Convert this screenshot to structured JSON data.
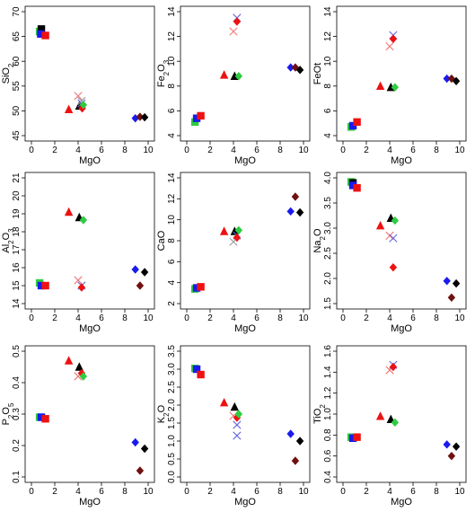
{
  "colors": {
    "black": "#000000",
    "red": "#ee1111",
    "green": "#2ecc40",
    "blue": "#1a1aee",
    "darkred": "#701010",
    "xred": "#ee7777",
    "xblue": "#6666dd",
    "xgrey": "#999999"
  },
  "chart_data": [
    {
      "type": "scatter",
      "xlabel": "MgO",
      "ylabel": "SiO2",
      "xlim": [
        0,
        10
      ],
      "ylim": [
        45,
        70
      ],
      "xticks": [
        0,
        2,
        4,
        6,
        8,
        10
      ],
      "yticks": [
        45,
        50,
        55,
        60,
        65,
        70
      ],
      "points": [
        {
          "x": 0.7,
          "y": 66.0,
          "shape": "square",
          "color": "green"
        },
        {
          "x": 0.85,
          "y": 66.5,
          "shape": "square",
          "color": "black"
        },
        {
          "x": 0.8,
          "y": 65.5,
          "shape": "square",
          "color": "blue"
        },
        {
          "x": 1.2,
          "y": 65.2,
          "shape": "square",
          "color": "red"
        },
        {
          "x": 3.2,
          "y": 50.3,
          "shape": "triangle",
          "color": "red"
        },
        {
          "x": 4.0,
          "y": 53.0,
          "shape": "x",
          "color": "xred"
        },
        {
          "x": 4.1,
          "y": 51.0,
          "shape": "triangle",
          "color": "black"
        },
        {
          "x": 4.3,
          "y": 52.0,
          "shape": "x",
          "color": "xgrey"
        },
        {
          "x": 4.3,
          "y": 51.5,
          "shape": "x",
          "color": "xblue"
        },
        {
          "x": 4.35,
          "y": 50.5,
          "shape": "diamond",
          "color": "red"
        },
        {
          "x": 4.45,
          "y": 51.2,
          "shape": "diamond",
          "color": "green"
        },
        {
          "x": 8.9,
          "y": 48.5,
          "shape": "diamond",
          "color": "blue"
        },
        {
          "x": 9.3,
          "y": 48.8,
          "shape": "diamond",
          "color": "darkred"
        },
        {
          "x": 9.7,
          "y": 48.7,
          "shape": "diamond",
          "color": "black"
        }
      ]
    },
    {
      "type": "scatter",
      "xlabel": "MgO",
      "ylabel": "Fe2O3",
      "xlim": [
        0,
        10
      ],
      "ylim": [
        4,
        14
      ],
      "xticks": [
        0,
        2,
        4,
        6,
        8,
        10
      ],
      "yticks": [
        4,
        6,
        8,
        10,
        12,
        14
      ],
      "points": [
        {
          "x": 0.7,
          "y": 5.1,
          "shape": "square",
          "color": "green"
        },
        {
          "x": 0.85,
          "y": 5.4,
          "shape": "square",
          "color": "blue"
        },
        {
          "x": 1.2,
          "y": 5.6,
          "shape": "square",
          "color": "red"
        },
        {
          "x": 3.2,
          "y": 8.9,
          "shape": "triangle",
          "color": "red"
        },
        {
          "x": 4.0,
          "y": 12.4,
          "shape": "x",
          "color": "xred"
        },
        {
          "x": 4.1,
          "y": 8.8,
          "shape": "triangle",
          "color": "black"
        },
        {
          "x": 4.3,
          "y": 13.5,
          "shape": "x",
          "color": "xblue"
        },
        {
          "x": 4.3,
          "y": 13.2,
          "shape": "diamond",
          "color": "red"
        },
        {
          "x": 4.45,
          "y": 8.8,
          "shape": "diamond",
          "color": "green"
        },
        {
          "x": 8.9,
          "y": 9.5,
          "shape": "diamond",
          "color": "blue"
        },
        {
          "x": 9.3,
          "y": 9.5,
          "shape": "diamond",
          "color": "darkred"
        },
        {
          "x": 9.7,
          "y": 9.3,
          "shape": "diamond",
          "color": "black"
        }
      ]
    },
    {
      "type": "scatter",
      "xlabel": "MgO",
      "ylabel": "FeOt",
      "xlim": [
        0,
        10
      ],
      "ylim": [
        4,
        14
      ],
      "xticks": [
        0,
        2,
        4,
        6,
        8,
        10
      ],
      "yticks": [
        4,
        6,
        8,
        10,
        12,
        14
      ],
      "points": [
        {
          "x": 0.7,
          "y": 4.7,
          "shape": "square",
          "color": "green"
        },
        {
          "x": 0.85,
          "y": 4.8,
          "shape": "square",
          "color": "blue"
        },
        {
          "x": 1.2,
          "y": 5.1,
          "shape": "square",
          "color": "red"
        },
        {
          "x": 3.2,
          "y": 8.0,
          "shape": "triangle",
          "color": "red"
        },
        {
          "x": 4.0,
          "y": 11.2,
          "shape": "x",
          "color": "xred"
        },
        {
          "x": 4.1,
          "y": 7.9,
          "shape": "triangle",
          "color": "black"
        },
        {
          "x": 4.3,
          "y": 12.1,
          "shape": "x",
          "color": "xblue"
        },
        {
          "x": 4.3,
          "y": 11.8,
          "shape": "diamond",
          "color": "red"
        },
        {
          "x": 4.45,
          "y": 7.9,
          "shape": "diamond",
          "color": "green"
        },
        {
          "x": 8.9,
          "y": 8.6,
          "shape": "diamond",
          "color": "blue"
        },
        {
          "x": 9.3,
          "y": 8.6,
          "shape": "diamond",
          "color": "darkred"
        },
        {
          "x": 9.7,
          "y": 8.4,
          "shape": "diamond",
          "color": "black"
        }
      ]
    },
    {
      "type": "scatter",
      "xlabel": "MgO",
      "ylabel": "Al2O3",
      "xlim": [
        0,
        10
      ],
      "ylim": [
        14,
        21
      ],
      "xticks": [
        0,
        2,
        4,
        6,
        8,
        10
      ],
      "yticks": [
        14,
        15,
        16,
        17,
        18,
        19,
        20,
        21
      ],
      "points": [
        {
          "x": 0.7,
          "y": 15.15,
          "shape": "square",
          "color": "green"
        },
        {
          "x": 0.85,
          "y": 15.0,
          "shape": "square",
          "color": "blue"
        },
        {
          "x": 1.2,
          "y": 15.0,
          "shape": "square",
          "color": "red"
        },
        {
          "x": 3.2,
          "y": 19.1,
          "shape": "triangle",
          "color": "red"
        },
        {
          "x": 4.0,
          "y": 15.3,
          "shape": "x",
          "color": "xred"
        },
        {
          "x": 4.1,
          "y": 18.8,
          "shape": "triangle",
          "color": "black"
        },
        {
          "x": 4.3,
          "y": 15.0,
          "shape": "x",
          "color": "xblue"
        },
        {
          "x": 4.3,
          "y": 14.9,
          "shape": "diamond",
          "color": "red"
        },
        {
          "x": 4.45,
          "y": 18.65,
          "shape": "diamond",
          "color": "green"
        },
        {
          "x": 8.9,
          "y": 15.9,
          "shape": "diamond",
          "color": "blue"
        },
        {
          "x": 9.3,
          "y": 15.0,
          "shape": "diamond",
          "color": "darkred"
        },
        {
          "x": 9.7,
          "y": 15.75,
          "shape": "diamond",
          "color": "black"
        }
      ]
    },
    {
      "type": "scatter",
      "xlabel": "MgO",
      "ylabel": "CaO",
      "xlim": [
        0,
        10
      ],
      "ylim": [
        2,
        14
      ],
      "xticks": [
        0,
        2,
        4,
        6,
        8,
        10
      ],
      "yticks": [
        2,
        4,
        6,
        8,
        10,
        12,
        14
      ],
      "points": [
        {
          "x": 0.7,
          "y": 3.4,
          "shape": "square",
          "color": "green"
        },
        {
          "x": 0.85,
          "y": 3.5,
          "shape": "square",
          "color": "blue"
        },
        {
          "x": 1.2,
          "y": 3.6,
          "shape": "square",
          "color": "red"
        },
        {
          "x": 3.2,
          "y": 8.9,
          "shape": "triangle",
          "color": "red"
        },
        {
          "x": 4.0,
          "y": 7.9,
          "shape": "x",
          "color": "xgrey"
        },
        {
          "x": 4.1,
          "y": 8.9,
          "shape": "triangle",
          "color": "black"
        },
        {
          "x": 4.3,
          "y": 8.5,
          "shape": "x",
          "color": "xblue"
        },
        {
          "x": 4.3,
          "y": 8.3,
          "shape": "diamond",
          "color": "red"
        },
        {
          "x": 4.45,
          "y": 9.0,
          "shape": "diamond",
          "color": "green"
        },
        {
          "x": 8.9,
          "y": 10.8,
          "shape": "diamond",
          "color": "blue"
        },
        {
          "x": 9.3,
          "y": 12.2,
          "shape": "diamond",
          "color": "darkred"
        },
        {
          "x": 9.7,
          "y": 10.7,
          "shape": "diamond",
          "color": "black"
        }
      ]
    },
    {
      "type": "scatter",
      "xlabel": "MgO",
      "ylabel": "Na2O",
      "xlim": [
        0,
        10
      ],
      "ylim": [
        1.5,
        4.0
      ],
      "xticks": [
        0,
        2,
        4,
        6,
        8,
        10
      ],
      "yticks": [
        1.5,
        2.0,
        2.5,
        3.0,
        3.5,
        4.0
      ],
      "points": [
        {
          "x": 0.7,
          "y": 3.92,
          "shape": "square",
          "color": "green"
        },
        {
          "x": 0.85,
          "y": 3.9,
          "shape": "square",
          "color": "black"
        },
        {
          "x": 0.85,
          "y": 3.85,
          "shape": "square",
          "color": "blue"
        },
        {
          "x": 1.2,
          "y": 3.8,
          "shape": "square",
          "color": "red"
        },
        {
          "x": 3.2,
          "y": 3.05,
          "shape": "triangle",
          "color": "red"
        },
        {
          "x": 4.0,
          "y": 2.85,
          "shape": "x",
          "color": "xred"
        },
        {
          "x": 4.1,
          "y": 3.2,
          "shape": "triangle",
          "color": "black"
        },
        {
          "x": 4.3,
          "y": 2.8,
          "shape": "x",
          "color": "xblue"
        },
        {
          "x": 4.3,
          "y": 2.22,
          "shape": "diamond",
          "color": "red"
        },
        {
          "x": 4.45,
          "y": 3.15,
          "shape": "diamond",
          "color": "green"
        },
        {
          "x": 8.9,
          "y": 1.95,
          "shape": "diamond",
          "color": "blue"
        },
        {
          "x": 9.3,
          "y": 1.62,
          "shape": "diamond",
          "color": "darkred"
        },
        {
          "x": 9.7,
          "y": 1.9,
          "shape": "diamond",
          "color": "black"
        }
      ]
    },
    {
      "type": "scatter",
      "xlabel": "MgO",
      "ylabel": "P2O5",
      "xlim": [
        0,
        10
      ],
      "ylim": [
        0.1,
        0.5
      ],
      "xticks": [
        0,
        2,
        4,
        6,
        8,
        10
      ],
      "yticks": [
        0.1,
        0.2,
        0.3,
        0.4,
        0.5
      ],
      "points": [
        {
          "x": 0.7,
          "y": 0.29,
          "shape": "square",
          "color": "green"
        },
        {
          "x": 0.85,
          "y": 0.29,
          "shape": "square",
          "color": "blue"
        },
        {
          "x": 1.2,
          "y": 0.285,
          "shape": "square",
          "color": "red"
        },
        {
          "x": 3.2,
          "y": 0.47,
          "shape": "triangle",
          "color": "red"
        },
        {
          "x": 4.0,
          "y": 0.42,
          "shape": "x",
          "color": "xred"
        },
        {
          "x": 4.1,
          "y": 0.45,
          "shape": "triangle",
          "color": "black"
        },
        {
          "x": 4.3,
          "y": 0.43,
          "shape": "diamond",
          "color": "red"
        },
        {
          "x": 4.45,
          "y": 0.42,
          "shape": "diamond",
          "color": "green"
        },
        {
          "x": 8.9,
          "y": 0.21,
          "shape": "diamond",
          "color": "blue"
        },
        {
          "x": 9.3,
          "y": 0.12,
          "shape": "diamond",
          "color": "darkred"
        },
        {
          "x": 9.7,
          "y": 0.19,
          "shape": "diamond",
          "color": "black"
        }
      ]
    },
    {
      "type": "scatter",
      "xlabel": "MgO",
      "ylabel": "K2O",
      "xlim": [
        0,
        10
      ],
      "ylim": [
        0,
        3.5
      ],
      "xticks": [
        0,
        2,
        4,
        6,
        8,
        10
      ],
      "yticks": [
        0.0,
        0.5,
        1.0,
        1.5,
        2.0,
        2.5,
        3.0,
        3.5
      ],
      "points": [
        {
          "x": 0.7,
          "y": 3.02,
          "shape": "square",
          "color": "green"
        },
        {
          "x": 0.85,
          "y": 3.0,
          "shape": "square",
          "color": "blue"
        },
        {
          "x": 1.2,
          "y": 2.85,
          "shape": "square",
          "color": "red"
        },
        {
          "x": 3.2,
          "y": 2.07,
          "shape": "triangle",
          "color": "red"
        },
        {
          "x": 4.0,
          "y": 1.7,
          "shape": "x",
          "color": "xred"
        },
        {
          "x": 4.1,
          "y": 1.95,
          "shape": "triangle",
          "color": "black"
        },
        {
          "x": 4.3,
          "y": 1.45,
          "shape": "x",
          "color": "xblue"
        },
        {
          "x": 4.3,
          "y": 1.15,
          "shape": "x",
          "color": "xblue"
        },
        {
          "x": 4.3,
          "y": 1.65,
          "shape": "diamond",
          "color": "red"
        },
        {
          "x": 4.45,
          "y": 1.75,
          "shape": "diamond",
          "color": "green"
        },
        {
          "x": 8.9,
          "y": 1.2,
          "shape": "diamond",
          "color": "blue"
        },
        {
          "x": 9.3,
          "y": 0.45,
          "shape": "diamond",
          "color": "darkred"
        },
        {
          "x": 9.7,
          "y": 1.0,
          "shape": "diamond",
          "color": "black"
        }
      ]
    },
    {
      "type": "scatter",
      "xlabel": "MgO",
      "ylabel": "TiO2",
      "xlim": [
        0,
        10
      ],
      "ylim": [
        0.4,
        1.6
      ],
      "xticks": [
        0,
        2,
        4,
        6,
        8,
        10
      ],
      "yticks": [
        0.4,
        0.6,
        0.8,
        1.0,
        1.2,
        1.4,
        1.6
      ],
      "points": [
        {
          "x": 0.7,
          "y": 0.78,
          "shape": "square",
          "color": "green"
        },
        {
          "x": 0.85,
          "y": 0.77,
          "shape": "square",
          "color": "blue"
        },
        {
          "x": 1.2,
          "y": 0.78,
          "shape": "square",
          "color": "red"
        },
        {
          "x": 3.2,
          "y": 0.98,
          "shape": "triangle",
          "color": "red"
        },
        {
          "x": 4.0,
          "y": 1.42,
          "shape": "x",
          "color": "xred"
        },
        {
          "x": 4.1,
          "y": 0.95,
          "shape": "triangle",
          "color": "black"
        },
        {
          "x": 4.3,
          "y": 1.47,
          "shape": "x",
          "color": "xblue"
        },
        {
          "x": 4.3,
          "y": 1.45,
          "shape": "diamond",
          "color": "red"
        },
        {
          "x": 4.45,
          "y": 0.92,
          "shape": "diamond",
          "color": "green"
        },
        {
          "x": 8.9,
          "y": 0.71,
          "shape": "diamond",
          "color": "blue"
        },
        {
          "x": 9.3,
          "y": 0.6,
          "shape": "diamond",
          "color": "darkred"
        },
        {
          "x": 9.7,
          "y": 0.69,
          "shape": "diamond",
          "color": "black"
        }
      ]
    }
  ]
}
